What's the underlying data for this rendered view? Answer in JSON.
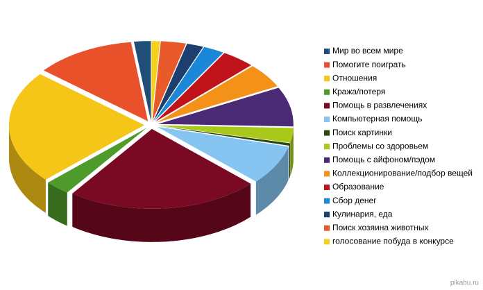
{
  "chart_data": {
    "type": "pie",
    "categories": [
      "Мир во всем мире",
      "Помогите поиграть",
      "Отношения",
      "Кража/потеря",
      "Помощь в развлечениях",
      "Компьютерная помощь",
      "Поиск картинки",
      "Проблемы со здоровьем",
      "Помощь с айфоном/пэдом",
      "Коллекционирование/подбор вещей",
      "Образование",
      "Сбор денег",
      "Кулинария, еда",
      "Поиск хозяина животных",
      "голосование побуда в конкурсе"
    ],
    "values": [
      2,
      12,
      23,
      3,
      23,
      8,
      0.5,
      3,
      8,
      5,
      4,
      2.5,
      2,
      3,
      1
    ],
    "colors": [
      "#1f4e79",
      "#e8512a",
      "#f5c518",
      "#4e9a2a",
      "#7a0a24",
      "#86c5f2",
      "#2b4a12",
      "#a8c81a",
      "#4b2a75",
      "#f39118",
      "#c0121a",
      "#1a88d6",
      "#1c3f6e",
      "#e85a2a",
      "#f6d21e"
    ]
  },
  "watermark": "pikabu.ru"
}
